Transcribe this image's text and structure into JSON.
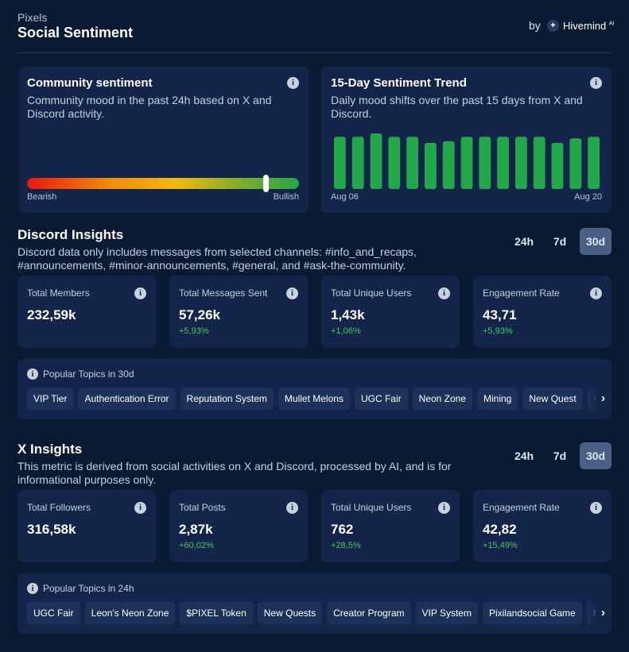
{
  "header": {
    "app": "Pixels",
    "title": "Social Sentiment",
    "by": "by",
    "brand": "Hivemind",
    "brand_sup": "AI"
  },
  "sentiment": {
    "title": "Community sentiment",
    "description": "Community mood in the past 24h based on X and Discord activity.",
    "min_label": "Bearish",
    "max_label": "Bullish",
    "value": 88,
    "range": [
      0,
      100
    ]
  },
  "trend": {
    "title": "15-Day Sentiment Trend",
    "description": "Daily mood shifts over the past 15 days from X and Discord.",
    "start_label": "Aug 06",
    "end_label": "Aug 20",
    "values": [
      94,
      94,
      100,
      94,
      94,
      83,
      86,
      94,
      94,
      94,
      94,
      94,
      83,
      91,
      94
    ],
    "ylim": [
      0,
      100
    ],
    "color": "#22a84a"
  },
  "discord": {
    "title": "Discord Insights",
    "description": "Discord data only includes messages from selected channels: #info_and_recaps, #announcements, #minor-announcements, #general, and #ask-the-community.",
    "periods": [
      "24h",
      "7d",
      "30d"
    ],
    "selected_period_index": 2,
    "stats": [
      {
        "label": "Total Members",
        "value": "232,59k"
      },
      {
        "label": "Total Messages Sent",
        "value": "57,26k",
        "change": "+5,93%"
      },
      {
        "label": "Total Unique Users",
        "value": "1,43k",
        "change": "+1,06%"
      },
      {
        "label": "Engagement Rate",
        "value": "43,71",
        "change": "+5,93%"
      }
    ],
    "topics_title": "Popular Topics in 30d",
    "topics": [
      "VIP Tier",
      "Authentication Error",
      "Reputation System",
      "Mullet Melons",
      "UGC Fair",
      "Neon Zone",
      "Mining",
      "New Quest",
      "Gar"
    ]
  },
  "x": {
    "title": "X Insights",
    "description": "This metric is derived from social activities on X and Discord, processed by AI, and is for informational purposes only.",
    "periods": [
      "24h",
      "7d",
      "30d"
    ],
    "selected_period_index": 2,
    "stats": [
      {
        "label": "Total Followers",
        "value": "316,58k"
      },
      {
        "label": "Total Posts",
        "value": "2,87k",
        "change": "+60,02%"
      },
      {
        "label": "Total Unique Users",
        "value": "762",
        "change": "+28,5%"
      },
      {
        "label": "Engagement Rate",
        "value": "42,82",
        "change": "+15,49%"
      }
    ],
    "topics_title": "Popular Topics in 24h",
    "topics": [
      "UGC Fair",
      "Leon's Neon Zone",
      "$PIXEL Token",
      "New Quests",
      "Creator Program",
      "VIP System",
      "Pixilandsocial Game",
      "NFT"
    ]
  }
}
